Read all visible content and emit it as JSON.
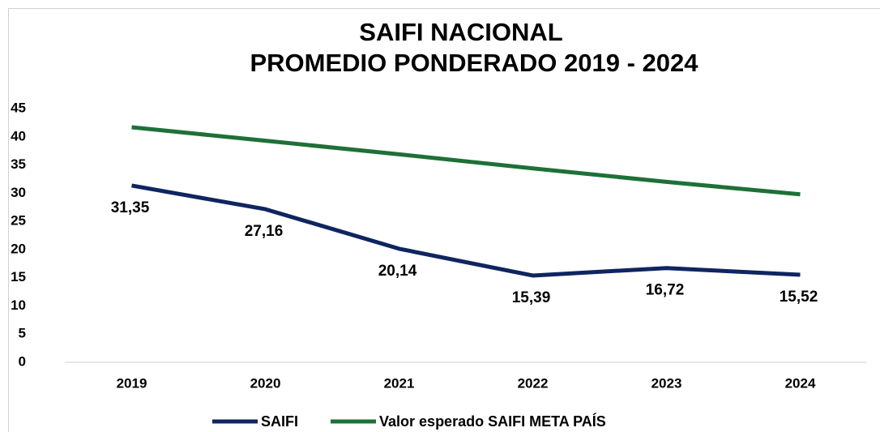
{
  "chart_data": {
    "type": "line",
    "title": "SAIFI NACIONAL",
    "subtitle": "PROMEDIO PONDERADO 2019 - 2024",
    "categories": [
      "2019",
      "2020",
      "2021",
      "2022",
      "2023",
      "2024"
    ],
    "series": [
      {
        "name": "SAIFI",
        "color": "#0f2560",
        "values": [
          31.35,
          27.16,
          20.14,
          15.39,
          16.72,
          15.52
        ],
        "value_labels": [
          "31,35",
          "27,16",
          "20,14",
          "15,39",
          "16,72",
          "15,52"
        ]
      },
      {
        "name": "Valor esperado SAIFI META PAÍS",
        "color": "#1e7037",
        "values": [
          41.7,
          39.3,
          36.9,
          34.4,
          32.0,
          29.8
        ]
      }
    ],
    "ylim": [
      0,
      45
    ],
    "yticks": [
      0,
      5,
      10,
      15,
      20,
      25,
      30,
      35,
      40,
      45
    ],
    "grid": false,
    "legend": "bottom"
  }
}
